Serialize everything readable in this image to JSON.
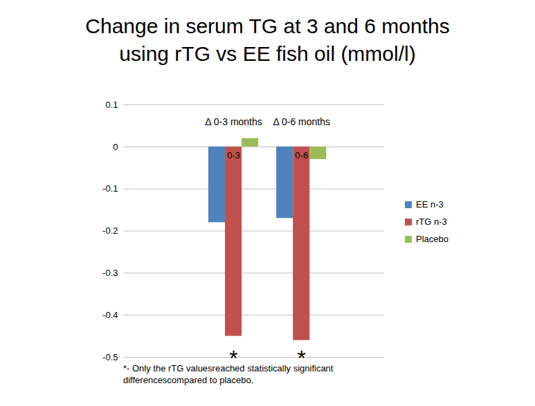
{
  "chart_data": {
    "type": "bar",
    "title": "Change in serum TG at 3 and 6 months using rTG vs EE fish oil (mmol/l)",
    "categories": [
      "0-3",
      "0-6"
    ],
    "group_titles": [
      "Δ 0-3 months",
      "Δ 0-6 months"
    ],
    "series": [
      {
        "name": "EE n-3",
        "color": "#4f81bd",
        "values": [
          -0.18,
          -0.17
        ]
      },
      {
        "name": "rTG n-3",
        "color": "#c0504d",
        "values": [
          -0.45,
          -0.46
        ],
        "annotations": [
          "*",
          "*"
        ]
      },
      {
        "name": "Placebo",
        "color": "#9bbb59",
        "values": [
          0.02,
          -0.03
        ]
      }
    ],
    "ylim": [
      -0.5,
      0.1
    ],
    "yticks": [
      -0.5,
      -0.4,
      -0.3,
      -0.2,
      -0.1,
      0,
      0.1
    ],
    "grid": true,
    "legend": "right",
    "footnote": "*- Only the rTG valuesreached statistically significant differencescompared to placebo."
  }
}
